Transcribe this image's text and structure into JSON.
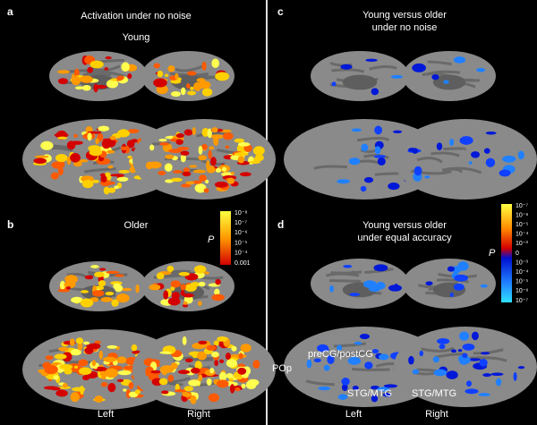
{
  "panels": [
    {
      "letter": "a",
      "title": "Activation under no noise",
      "subtitle": "Young"
    },
    {
      "letter": "b",
      "title": "Older"
    },
    {
      "letter": "c",
      "title_lines": [
        "Young versus older",
        "under no noise"
      ]
    },
    {
      "letter": "d",
      "title_lines": [
        "Young versus older",
        "under equal accuracy"
      ]
    }
  ],
  "colorbars": [
    {
      "label": "P",
      "ticks": [
        "10⁻⁸",
        "10⁻⁷",
        "10⁻⁶",
        "10⁻⁵",
        "10⁻⁴",
        "0.001"
      ]
    },
    {
      "label": "P",
      "ticks": [
        "10⁻⁷",
        "10⁻⁶",
        "10⁻⁵",
        "10⁻⁴",
        "10⁻³",
        "0",
        "10⁻³",
        "10⁻⁴",
        "10⁻⁵",
        "10⁻⁶",
        "10⁻⁷"
      ]
    }
  ],
  "annotations": [
    "preCG/postCG",
    "POp",
    "STG/MTG",
    "STG/MTG"
  ],
  "hemispheres": {
    "left_half": [
      "Left",
      "Right"
    ],
    "right_half": [
      "Left",
      "Right"
    ]
  }
}
